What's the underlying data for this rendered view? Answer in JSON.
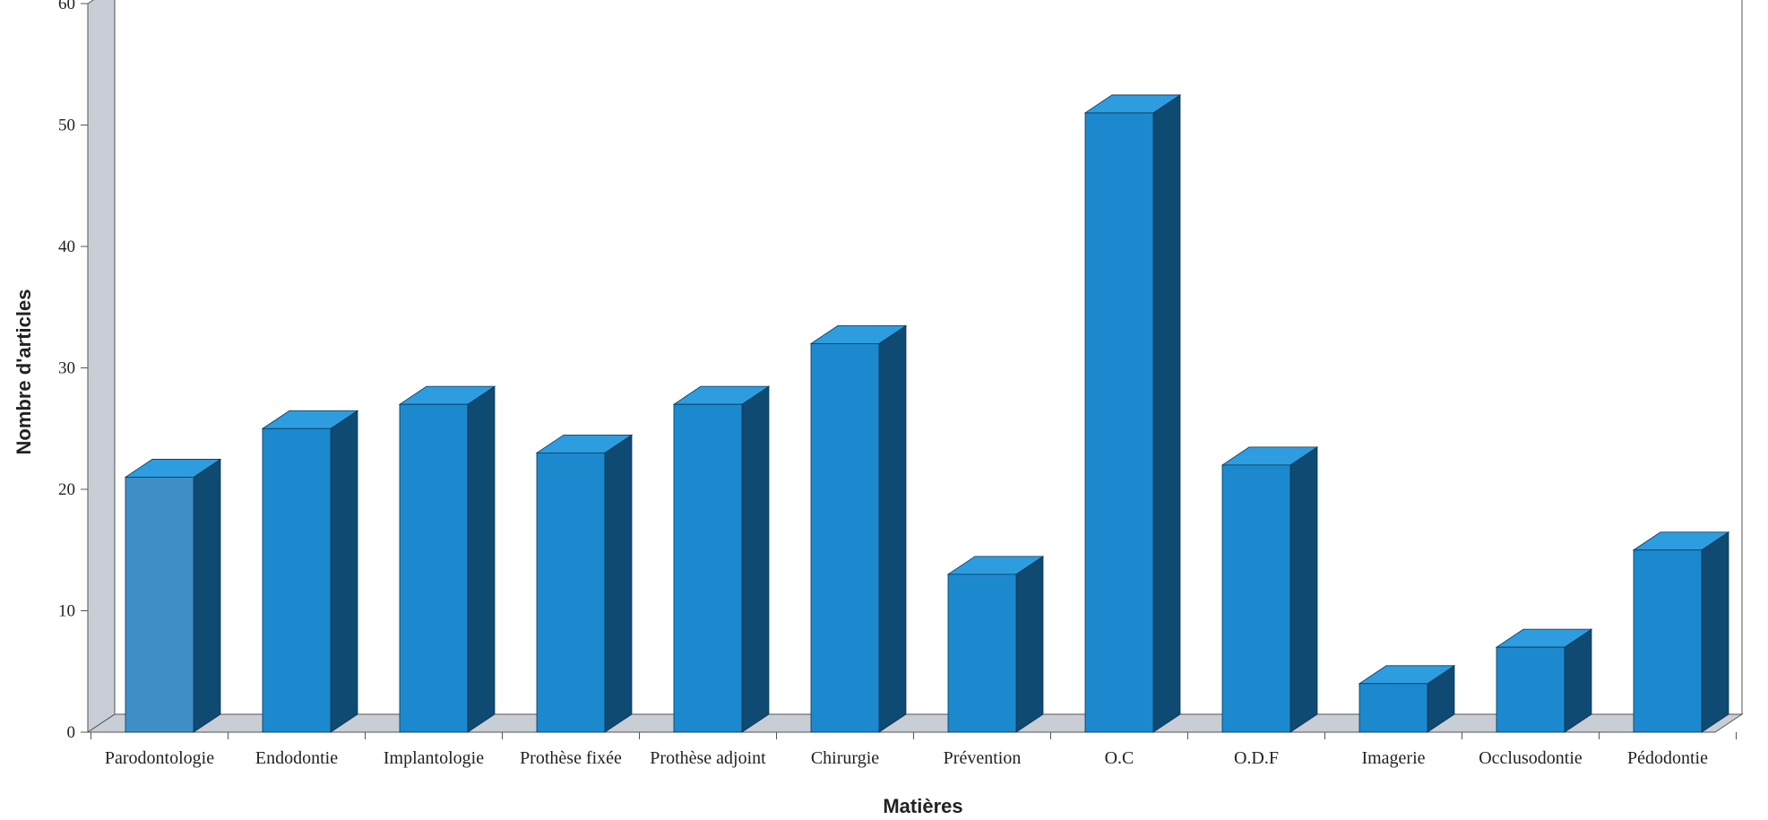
{
  "chart_data": {
    "type": "bar",
    "title": "",
    "xlabel": "Matières",
    "ylabel": "Nombre d'articles",
    "categories": [
      "Parodontologie",
      "Endodontie",
      "Implantologie",
      "Prothèse fixée",
      "Prothèse adjoint",
      "Chirurgie",
      "Prévention",
      "O.C",
      "O.D.F",
      "Imagerie",
      "Occlusodontie",
      "Pédodontie"
    ],
    "values": [
      21,
      25,
      27,
      23,
      27,
      32,
      13,
      51,
      22,
      4,
      7,
      15
    ],
    "ylim": [
      0,
      60
    ],
    "yticks": [
      0,
      10,
      20,
      30,
      40,
      50,
      60
    ],
    "grid": false,
    "legend": "none",
    "three_d": true,
    "colors": {
      "bar_front": "#1c89cf",
      "bar_front_first": "#3f8fc6",
      "bar_side": "#0f4a72",
      "bar_top": "#2d9de0",
      "wall": "#c9cdd6",
      "floor": "#c9cdd6",
      "axis": "#555555"
    }
  }
}
